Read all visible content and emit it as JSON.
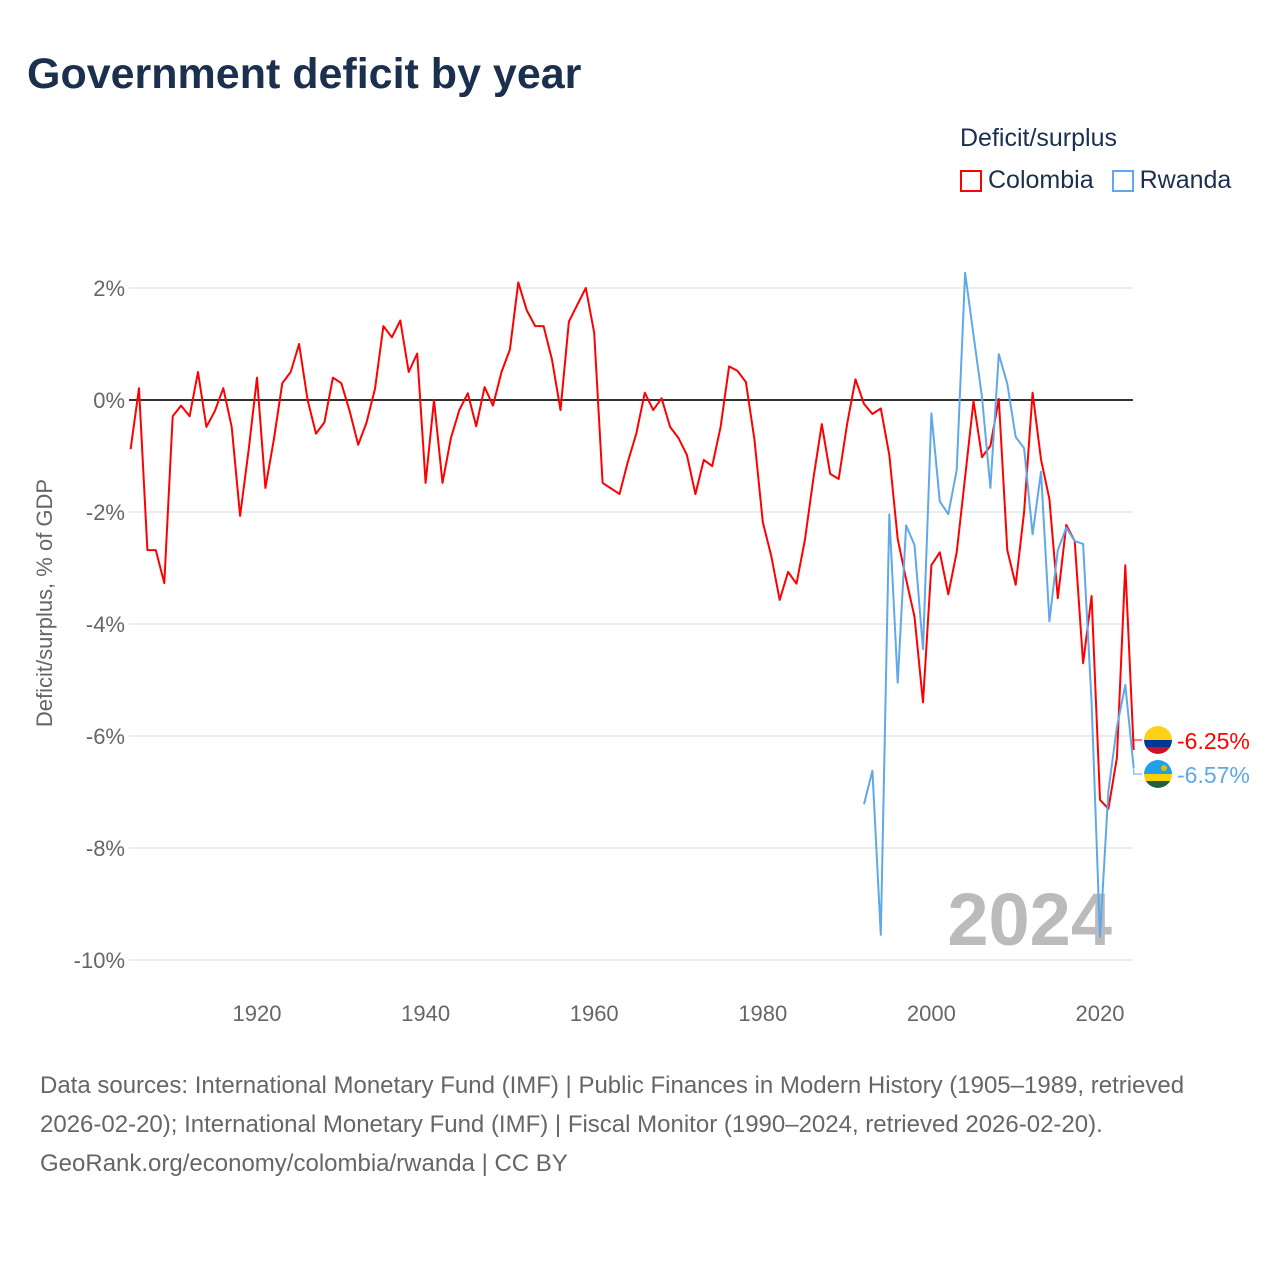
{
  "title": "Government deficit by year",
  "footer": {
    "sources": "Data sources: International Monetary Fund (IMF) | Public Finances in Modern History (1905–1989, retrieved 2026-02-20); International Monetary Fund (IMF) | Fiscal Monitor (1990–2024, retrieved 2026-02-20).",
    "credit": "GeoRank.org/economy/colombia/rwanda | CC BY"
  },
  "chart_data": {
    "type": "line",
    "title": "Government deficit by year",
    "ylabel": "Deficit/surplus, % of GDP",
    "xlabel": "",
    "legend_title": "Deficit/surplus",
    "legend_position": "top-right",
    "year_watermark": "2024",
    "xlim": [
      1905,
      2024
    ],
    "ylim": [
      -10,
      2.5
    ],
    "x_ticks": [
      1920,
      1940,
      1960,
      1980,
      2000,
      2020
    ],
    "x_tick_labels": [
      "1920",
      "1940",
      "1960",
      "1980",
      "2000",
      "2020"
    ],
    "y_ticks": [
      2,
      0,
      -2,
      -4,
      -6,
      -8,
      -10
    ],
    "y_tick_labels": [
      "2%",
      "0%",
      "-2%",
      "-4%",
      "-6%",
      "-8%",
      "-10%"
    ],
    "grid": true,
    "series": [
      {
        "name": "Colombia",
        "color": "#ff0000",
        "end_label": "-6.25%",
        "start_year": 1905,
        "values": [
          -0.88,
          0.21,
          -2.68,
          -2.68,
          -3.27,
          -0.29,
          -0.1,
          -0.29,
          0.5,
          -0.48,
          -0.2,
          0.21,
          -0.48,
          -2.07,
          -0.9,
          0.4,
          -1.57,
          -0.7,
          0.3,
          0.5,
          1.0,
          0,
          -0.6,
          -0.4,
          0.4,
          0.3,
          -0.2,
          -0.8,
          -0.4,
          0.2,
          1.32,
          1.12,
          1.42,
          0.5,
          0.83,
          -1.48,
          0,
          -1.48,
          -0.68,
          -0.18,
          0.12,
          -0.47,
          0.23,
          -0.1,
          0.5,
          0.9,
          2.1,
          1.6,
          1.32,
          1.32,
          0.72,
          -0.18,
          1.4,
          1.7,
          2.0,
          1.2,
          -1.48,
          -1.58,
          -1.68,
          -1.1,
          -0.6,
          0.13,
          -0.18,
          0.03,
          -0.48,
          -0.68,
          -0.98,
          -1.68,
          -1.07,
          -1.18,
          -0.48,
          0.6,
          0.52,
          0.32,
          -0.7,
          -2.18,
          -2.78,
          -3.57,
          -3.07,
          -3.28,
          -2.5,
          -1.4,
          -0.43,
          -1.32,
          -1.41,
          -0.43,
          0.37,
          -0.07,
          -0.25,
          -0.15,
          -0.98,
          -2.48,
          -3.2,
          -3.87,
          -5.4,
          -2.95,
          -2.72,
          -3.47,
          -2.72,
          -1.38,
          -0.02,
          -1.02,
          -0.82,
          0.02,
          -2.68,
          -3.3,
          -2.0,
          0.13,
          -1.06,
          -1.77,
          -3.54,
          -2.23,
          -2.52,
          -4.7,
          -3.5,
          -7.14,
          -7.3,
          -6.39,
          -2.95,
          -6.25
        ]
      },
      {
        "name": "Rwanda",
        "color": "#5fa8ea",
        "end_label": "-6.57%",
        "start_year": 1992,
        "values": [
          -7.22,
          -6.62,
          -9.55,
          -2.04,
          -5.05,
          -2.24,
          -2.59,
          -4.45,
          -0.24,
          -1.81,
          -2.04,
          -1.25,
          2.27,
          1.16,
          0.05,
          -1.57,
          0.82,
          0.29,
          -0.66,
          -0.86,
          -2.4,
          -1.28,
          -3.95,
          -2.68,
          -2.28,
          -2.52,
          -2.57,
          -5.4,
          -9.59,
          -6.98,
          -5.84,
          -5.09,
          -6.57
        ]
      }
    ]
  }
}
